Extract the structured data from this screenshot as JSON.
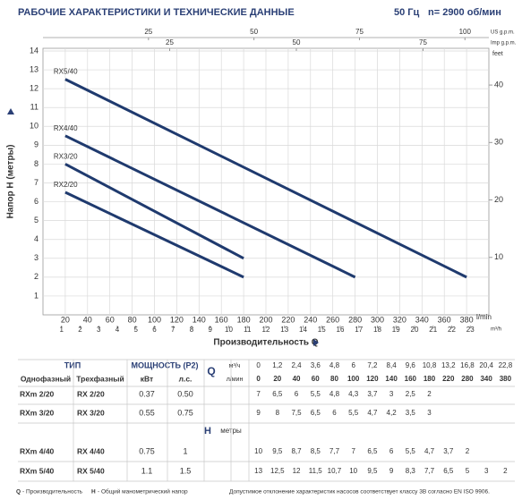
{
  "header": {
    "title": "РАБОЧИЕ ХАРАКТЕРИСТИКИ И ТЕХНИЧЕСКИЕ ДАННЫЕ",
    "frequency": "50 Гц",
    "speed": "n= 2900 об/мин"
  },
  "chart_data": {
    "type": "line",
    "y_label": "Напор H (метры)",
    "x_label": "Производительность Q",
    "x_unit": "l/min",
    "xlim": [
      0,
      400
    ],
    "xticks": [
      20,
      40,
      60,
      80,
      100,
      120,
      140,
      160,
      180,
      200,
      220,
      240,
      260,
      280,
      300,
      320,
      340,
      360,
      380
    ],
    "ylim": [
      0,
      14
    ],
    "yticks": [
      1,
      2,
      3,
      4,
      5,
      6,
      7,
      8,
      9,
      10,
      11,
      12,
      13,
      14
    ],
    "y2_unit": "feet",
    "y2lim": [
      0,
      45.93
    ],
    "y2ticks": [
      10,
      20,
      30,
      40
    ],
    "secondary_x": [
      {
        "unit": "US g.p.m.",
        "lim": [
          0,
          105.67
        ],
        "ticks": [
          25,
          50,
          75,
          100
        ]
      },
      {
        "unit": "Imp g.p.m.",
        "lim": [
          0,
          87.99
        ],
        "ticks": [
          25,
          50,
          75
        ]
      },
      {
        "unit": "m³/h",
        "lim": [
          0,
          24
        ],
        "ticks": [
          1,
          2,
          3,
          4,
          5,
          6,
          7,
          8,
          9,
          10,
          11,
          12,
          13,
          14,
          15,
          16,
          17,
          18,
          19,
          20,
          21,
          22,
          23
        ]
      }
    ],
    "grid": true,
    "series": [
      {
        "name": "RX5/40",
        "color": "#1f3a6e",
        "x": [
          20,
          380
        ],
        "values": [
          12.5,
          2
        ]
      },
      {
        "name": "RX4/40",
        "color": "#1f3a6e",
        "x": [
          20,
          280
        ],
        "values": [
          9.5,
          2
        ]
      },
      {
        "name": "RX3/20",
        "color": "#1f3a6e",
        "x": [
          20,
          180
        ],
        "values": [
          8,
          3
        ]
      },
      {
        "name": "RX2/20",
        "color": "#1f3a6e",
        "x": [
          20,
          180
        ],
        "values": [
          6.5,
          2
        ]
      }
    ]
  },
  "table": {
    "type_header": "ТИП",
    "power_header": "МОЩНОСТЬ (P2)",
    "q_label": "Q",
    "h_label": "H",
    "h_unit": "метры",
    "subheaders": [
      "Однофазный",
      "Трехфазный",
      "кВт",
      "л.с."
    ],
    "q_units": [
      "м³/ч",
      "л/мин"
    ],
    "q_m3h": [
      "0",
      "1,2",
      "2,4",
      "3,6",
      "4,8",
      "6",
      "7,2",
      "8,4",
      "9,6",
      "10,8",
      "13,2",
      "16,8",
      "20,4",
      "22,8"
    ],
    "q_lmin": [
      "0",
      "20",
      "40",
      "60",
      "80",
      "100",
      "120",
      "140",
      "160",
      "180",
      "220",
      "280",
      "340",
      "380"
    ],
    "rows": [
      {
        "single": "RXm 2/20",
        "three": "RX 2/20",
        "kw": "0.37",
        "hp": "0.50",
        "h": [
          "7",
          "6,5",
          "6",
          "5,5",
          "4,8",
          "4,3",
          "3,7",
          "3",
          "2,5",
          "2"
        ]
      },
      {
        "single": "RXm 3/20",
        "three": "RX 3/20",
        "kw": "0.55",
        "hp": "0.75",
        "h": [
          "9",
          "8",
          "7,5",
          "6,5",
          "6",
          "5,5",
          "4,7",
          "4,2",
          "3,5",
          "3"
        ]
      },
      {
        "single": "RXm 4/40",
        "three": "RX 4/40",
        "kw": "0.75",
        "hp": "1",
        "h": [
          "10",
          "9,5",
          "8,7",
          "8,5",
          "7,7",
          "7",
          "6,5",
          "6",
          "5,5",
          "4,7",
          "3,7",
          "2"
        ]
      },
      {
        "single": "RXm 5/40",
        "three": "RX 5/40",
        "kw": "1.1",
        "hp": "1.5",
        "h": [
          "13",
          "12,5",
          "12",
          "11,5",
          "10,7",
          "10",
          "9,5",
          "9",
          "8,3",
          "7,7",
          "6,5",
          "5",
          "3",
          "2"
        ]
      }
    ]
  },
  "footer": {
    "q_abbr": "Q",
    "q_text": "- Производительность",
    "h_abbr": "H",
    "h_text": "- Общий манометрический напор",
    "tolerance": "Допустимое отклонение характеристик насосов соответствует классу 3B согласно EN ISO 9906."
  }
}
